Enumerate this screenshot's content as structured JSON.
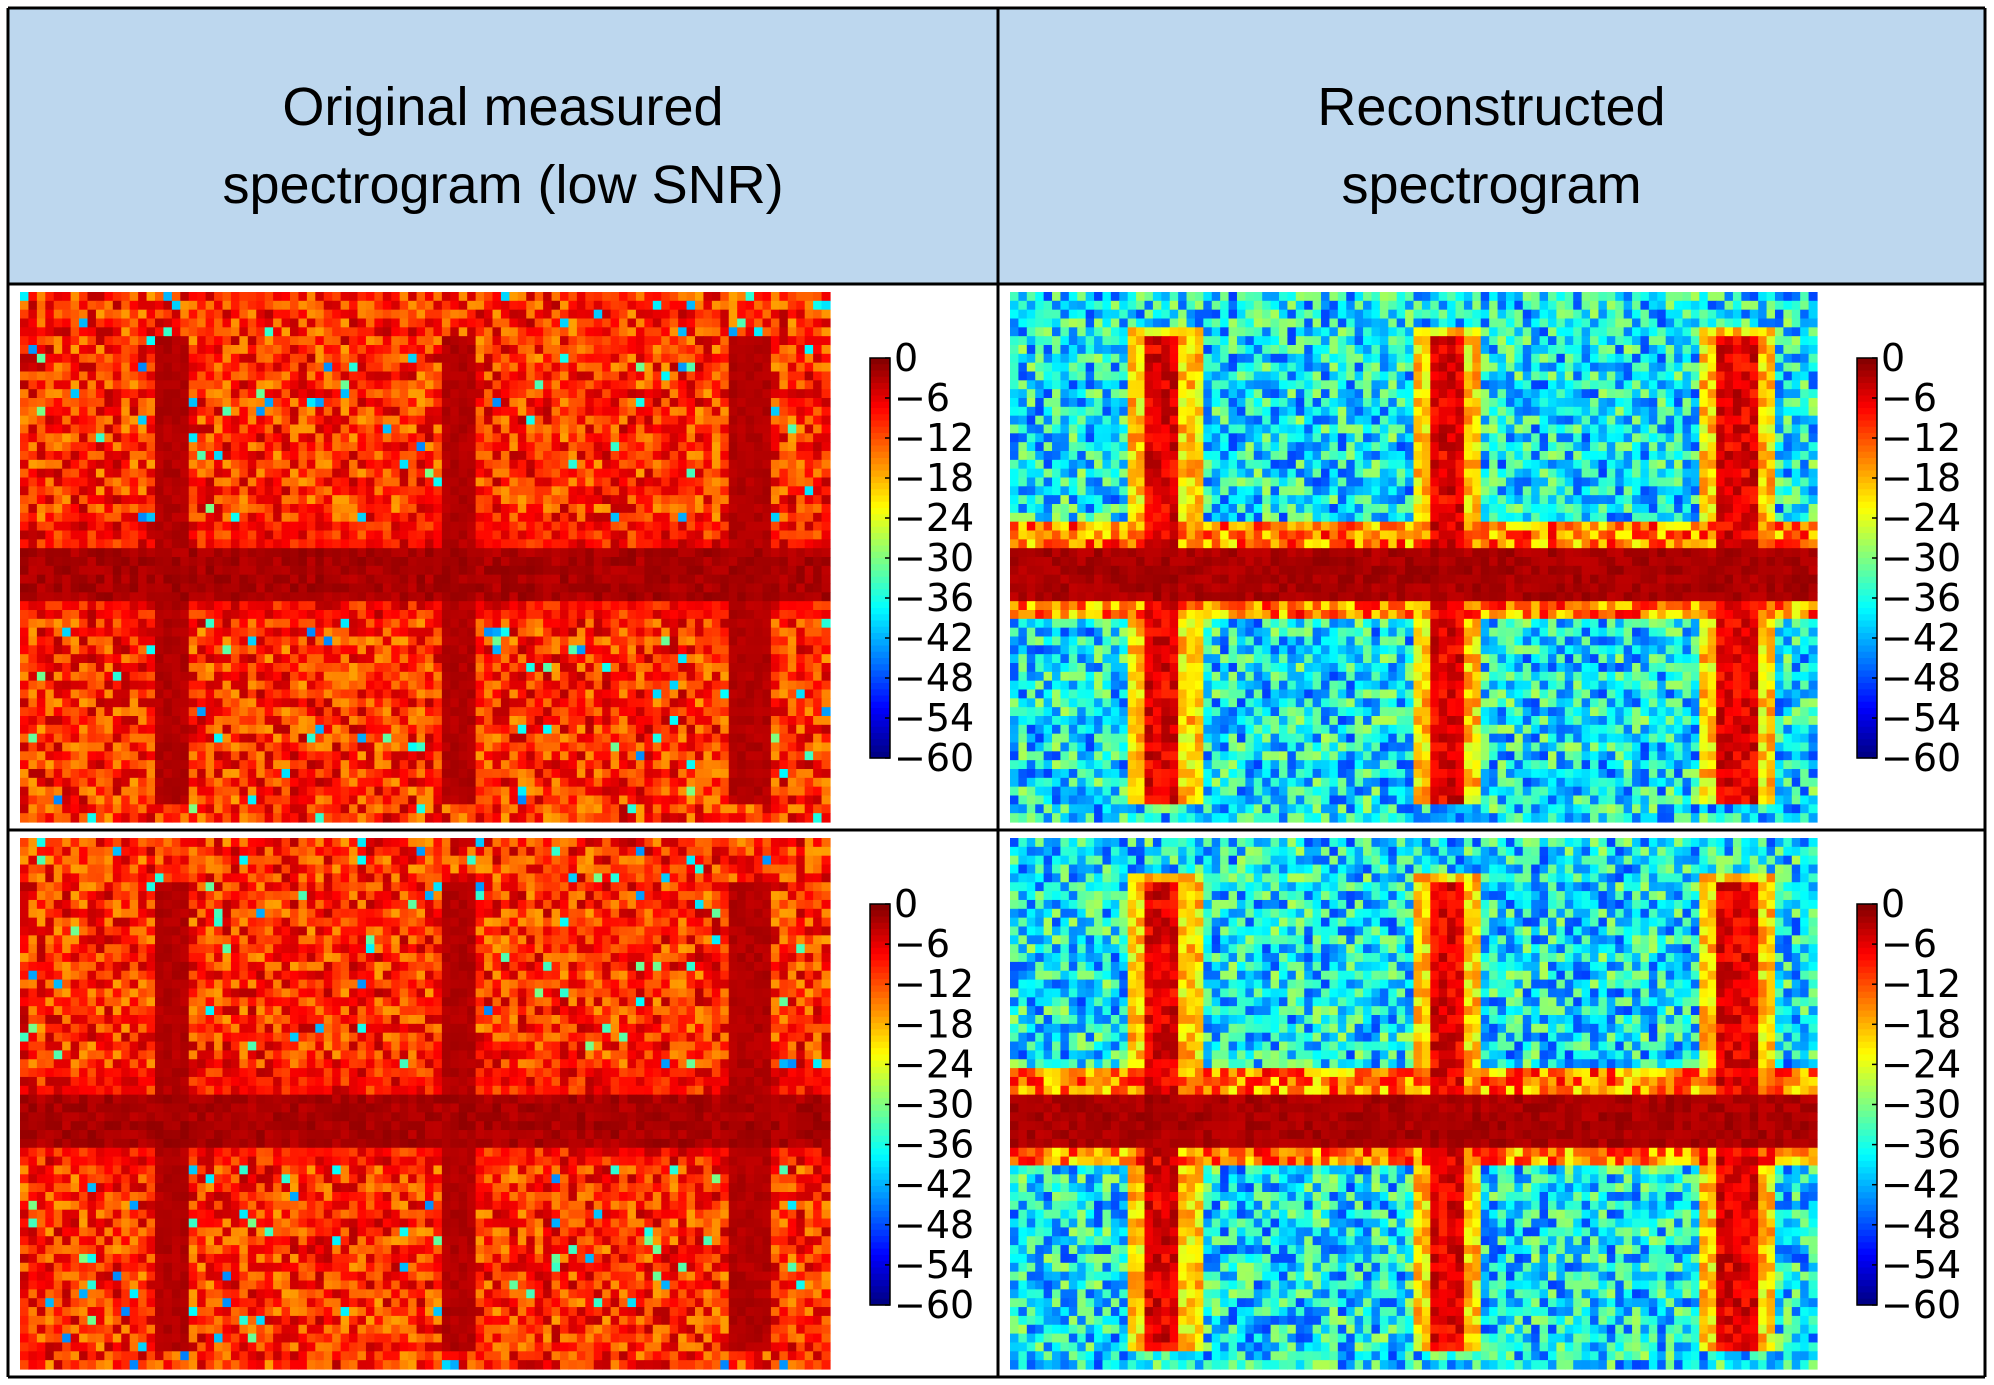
{
  "table": {
    "headers": [
      {
        "lines": [
          "Original measured",
          "spectrogram (low SNR)"
        ]
      },
      {
        "lines": [
          "Reconstructed",
          "spectrogram"
        ]
      }
    ],
    "border_color": "#000000",
    "header_bg": "#bdd7ee"
  },
  "chart_data": [
    {
      "type": "heatmap",
      "column": "Original measured spectrogram (low SNR)",
      "row": 1,
      "colorbar": {
        "ticks": [
          0,
          -6,
          -12,
          -18,
          -24,
          -30,
          -36,
          -42,
          -48,
          -54,
          -60
        ],
        "range": [
          -60,
          0
        ],
        "colormap": "jet"
      },
      "pattern": {
        "background_level": -10,
        "vertical_stripes": 3,
        "horizontal_band": 1
      }
    },
    {
      "type": "heatmap",
      "column": "Reconstructed spectrogram",
      "row": 1,
      "colorbar": {
        "ticks": [
          0,
          -6,
          -12,
          -18,
          -24,
          -30,
          -36,
          -42,
          -48,
          -54,
          -60
        ],
        "range": [
          -60,
          0
        ],
        "colormap": "jet"
      },
      "pattern": {
        "background_level": -38,
        "vertical_stripes": 3,
        "horizontal_band": 1
      }
    },
    {
      "type": "heatmap",
      "column": "Original measured spectrogram (low SNR)",
      "row": 2,
      "colorbar": {
        "ticks": [
          0,
          -6,
          -12,
          -18,
          -24,
          -30,
          -36,
          -42,
          -48,
          -54,
          -60
        ],
        "range": [
          -60,
          0
        ],
        "colormap": "jet"
      },
      "pattern": {
        "background_level": -10,
        "vertical_stripes": 3,
        "horizontal_band": 1
      }
    },
    {
      "type": "heatmap",
      "column": "Reconstructed spectrogram",
      "row": 2,
      "colorbar": {
        "ticks": [
          0,
          -6,
          -12,
          -18,
          -24,
          -30,
          -36,
          -42,
          -48,
          -54,
          -60
        ],
        "range": [
          -60,
          0
        ],
        "colormap": "jet"
      },
      "pattern": {
        "background_level": -38,
        "vertical_stripes": 3,
        "horizontal_band": 1
      }
    }
  ]
}
